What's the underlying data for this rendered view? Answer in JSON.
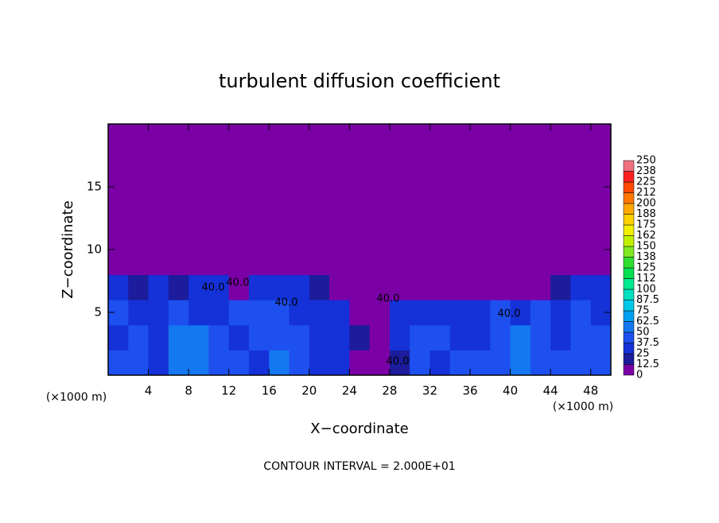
{
  "chart_data": {
    "type": "heatmap",
    "title": "turbulent diffusion coefficient",
    "xlabel": "X−coordinate",
    "ylabel": "Z−coordinate",
    "x_unit": "(×1000 m)",
    "footer": "CONTOUR INTERVAL = 2.000E+01",
    "xlim": [
      0,
      50
    ],
    "ylim": [
      0,
      20
    ],
    "xticks": [
      4,
      8,
      12,
      16,
      20,
      24,
      28,
      32,
      36,
      40,
      44,
      48
    ],
    "yticks": [
      5,
      10,
      15
    ],
    "x": [
      1,
      3,
      5,
      7,
      9,
      11,
      13,
      15,
      17,
      19,
      21,
      23,
      25,
      27,
      29,
      31,
      33,
      35,
      37,
      39,
      41,
      43,
      45,
      47,
      49
    ],
    "y": [
      1,
      3,
      5,
      7,
      9,
      11,
      13,
      15,
      17,
      19
    ],
    "z": [
      [
        40,
        45,
        35,
        50,
        62,
        40,
        45,
        35,
        50,
        40,
        30,
        25,
        10,
        5,
        20,
        45,
        35,
        40,
        40,
        45,
        50,
        40,
        45,
        40,
        45
      ],
      [
        35,
        40,
        30,
        60,
        50,
        40,
        35,
        45,
        45,
        40,
        35,
        30,
        15,
        10,
        30,
        40,
        40,
        35,
        30,
        40,
        50,
        45,
        35,
        40,
        40
      ],
      [
        40,
        35,
        30,
        45,
        35,
        30,
        40,
        45,
        40,
        35,
        35,
        25,
        5,
        10,
        30,
        30,
        25,
        30,
        35,
        45,
        30,
        40,
        35,
        40,
        35
      ],
      [
        30,
        20,
        25,
        20,
        30,
        25,
        10,
        25,
        30,
        25,
        20,
        10,
        0,
        0,
        5,
        10,
        5,
        5,
        5,
        5,
        5,
        10,
        20,
        30,
        30
      ],
      [
        0,
        0,
        0,
        0,
        0,
        0,
        0,
        0,
        0,
        0,
        0,
        0,
        0,
        0,
        0,
        0,
        0,
        0,
        0,
        0,
        0,
        0,
        0,
        0,
        0
      ],
      [
        0,
        0,
        0,
        0,
        0,
        0,
        0,
        0,
        0,
        0,
        0,
        0,
        0,
        0,
        0,
        0,
        0,
        0,
        0,
        0,
        0,
        0,
        0,
        0,
        0
      ],
      [
        0,
        0,
        0,
        0,
        0,
        0,
        0,
        0,
        0,
        0,
        0,
        0,
        0,
        0,
        0,
        0,
        0,
        0,
        0,
        0,
        0,
        0,
        0,
        0,
        0
      ],
      [
        0,
        0,
        0,
        0,
        0,
        0,
        0,
        0,
        0,
        0,
        0,
        0,
        0,
        0,
        0,
        0,
        0,
        0,
        0,
        0,
        0,
        0,
        0,
        0,
        0
      ],
      [
        0,
        0,
        0,
        0,
        0,
        0,
        0,
        0,
        0,
        0,
        0,
        0,
        0,
        0,
        0,
        0,
        0,
        0,
        0,
        0,
        0,
        0,
        0,
        0,
        0
      ],
      [
        0,
        0,
        0,
        0,
        0,
        0,
        0,
        0,
        0,
        0,
        0,
        0,
        0,
        0,
        0,
        0,
        0,
        0,
        0,
        0,
        0,
        0,
        0,
        0,
        0
      ]
    ],
    "contour_labels": [
      "40.0",
      "40.0",
      "40.0",
      "40.0",
      "40.0",
      "40.0"
    ],
    "colorbar": {
      "levels": [
        0,
        12.5,
        25,
        37.5,
        50,
        62.5,
        75,
        87.5,
        100,
        {
          "value": 112.5,
          "label": "112"
        },
        125,
        {
          "value": 137.5,
          "label": "138"
        },
        150,
        {
          "value": 162.5,
          "label": "162"
        },
        175,
        {
          "value": 187.5,
          "label": "188"
        },
        200,
        {
          "value": 212.5,
          "label": "212"
        },
        225,
        {
          "value": 237.5,
          "label": "238"
        },
        250
      ],
      "colors": [
        "#7a00a6",
        "#1c1c9c",
        "#1432d8",
        "#1e50f0",
        "#1478f0",
        "#00a0f0",
        "#00c8e8",
        "#00e0c0",
        "#00e890",
        "#00e050",
        "#30e030",
        "#80e820",
        "#c0f000",
        "#f0f000",
        "#ffd000",
        "#ffa800",
        "#ff7800",
        "#ff4800",
        "#ff2020",
        "#f07080"
      ]
    }
  }
}
